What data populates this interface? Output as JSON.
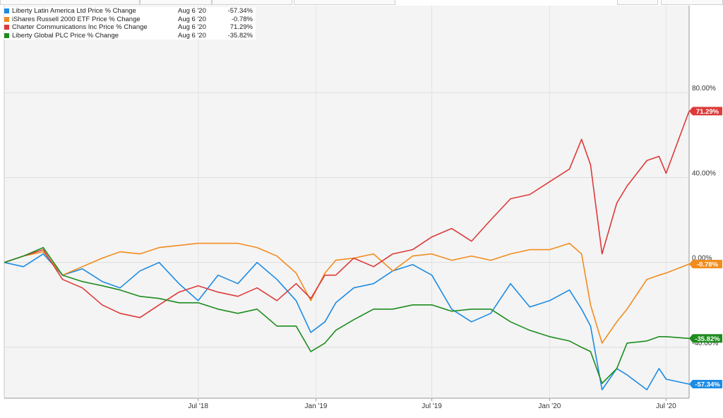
{
  "chart_data": {
    "type": "line",
    "ylabel_unit": "%",
    "y_ticks": [
      {
        "value": 80,
        "label": "80.00%"
      },
      {
        "value": 40,
        "label": "40.00%"
      },
      {
        "value": 0,
        "label": "0.00%"
      },
      {
        "value": -40,
        "label": "-40.00%"
      }
    ],
    "x_ticks": [
      "Jul '18",
      "Jan '19",
      "Jul '19",
      "Jan '20",
      "Jul '20"
    ],
    "x_tick_dates": [
      "2018-07-01",
      "2019-01-01",
      "2019-07-01",
      "2020-01-01",
      "2020-07-01"
    ],
    "x_range": [
      "2017-09-01",
      "2020-08-06"
    ],
    "ylim": [
      -64,
      121
    ],
    "grid": true,
    "legend_position": "top-left",
    "series": [
      {
        "name": "Liberty Latin America Ltd Price % Change",
        "legend_date": "Aug 6 '20",
        "legend_value": "-57.34%",
        "end_label": "-57.34%",
        "color": "#1c8be4",
        "x": [
          "2017-09-01",
          "2017-10-01",
          "2017-11-01",
          "2017-12-01",
          "2018-01-01",
          "2018-02-01",
          "2018-03-01",
          "2018-04-01",
          "2018-05-01",
          "2018-06-01",
          "2018-07-01",
          "2018-08-01",
          "2018-09-01",
          "2018-10-01",
          "2018-11-01",
          "2018-12-01",
          "2018-12-24",
          "2019-01-15",
          "2019-02-01",
          "2019-03-01",
          "2019-04-01",
          "2019-05-01",
          "2019-06-01",
          "2019-07-01",
          "2019-08-01",
          "2019-09-01",
          "2019-10-01",
          "2019-11-01",
          "2019-12-01",
          "2020-01-01",
          "2020-02-01",
          "2020-02-20",
          "2020-03-05",
          "2020-03-23",
          "2020-04-15",
          "2020-05-01",
          "2020-06-01",
          "2020-06-20",
          "2020-07-01",
          "2020-08-06"
        ],
        "y": [
          0,
          -2,
          4,
          -6,
          -3,
          -9,
          -12,
          -4,
          0,
          -10,
          -18,
          -6,
          -10,
          0,
          -8,
          -18,
          -33,
          -28,
          -19,
          -12,
          -10,
          -4,
          -1,
          -6,
          -22,
          -28,
          -24,
          -10,
          -21,
          -18,
          -13,
          -22,
          -30,
          -60,
          -50,
          -53,
          -60,
          -50,
          -55,
          -57.34
        ]
      },
      {
        "name": "iShares Russell 2000 ETF Price % Change",
        "legend_date": "Aug 6 '20",
        "legend_value": "-0.78%",
        "end_label": "-0.78%",
        "color": "#f28c1e",
        "x": [
          "2017-09-01",
          "2017-10-01",
          "2017-11-01",
          "2017-12-01",
          "2018-01-01",
          "2018-02-01",
          "2018-03-01",
          "2018-04-01",
          "2018-05-01",
          "2018-06-01",
          "2018-07-01",
          "2018-08-01",
          "2018-09-01",
          "2018-10-01",
          "2018-11-01",
          "2018-12-01",
          "2018-12-24",
          "2019-01-15",
          "2019-02-01",
          "2019-03-01",
          "2019-04-01",
          "2019-05-01",
          "2019-06-01",
          "2019-07-01",
          "2019-08-01",
          "2019-09-01",
          "2019-10-01",
          "2019-11-01",
          "2019-12-01",
          "2020-01-01",
          "2020-02-01",
          "2020-02-20",
          "2020-03-05",
          "2020-03-23",
          "2020-04-15",
          "2020-05-01",
          "2020-06-01",
          "2020-06-20",
          "2020-07-01",
          "2020-08-06"
        ],
        "y": [
          0,
          3,
          5,
          -6,
          -2,
          2,
          5,
          4,
          7,
          8,
          9,
          9,
          9,
          7,
          3,
          -5,
          -18,
          -5,
          1,
          2,
          4,
          -4,
          3,
          4,
          1,
          3,
          1,
          4,
          6,
          6,
          9,
          4,
          -20,
          -38,
          -28,
          -22,
          -8,
          -6,
          -5,
          -0.78
        ]
      },
      {
        "name": "Charter Communications Inc Price % Change",
        "legend_date": "Aug 6 '20",
        "legend_value": "71.29%",
        "end_label": "71.29%",
        "color": "#dd3a3a",
        "x": [
          "2017-09-01",
          "2017-10-01",
          "2017-11-01",
          "2017-12-01",
          "2018-01-01",
          "2018-02-01",
          "2018-03-01",
          "2018-04-01",
          "2018-05-01",
          "2018-06-01",
          "2018-07-01",
          "2018-08-01",
          "2018-09-01",
          "2018-10-01",
          "2018-11-01",
          "2018-12-01",
          "2018-12-24",
          "2019-01-15",
          "2019-02-01",
          "2019-03-01",
          "2019-04-01",
          "2019-05-01",
          "2019-06-01",
          "2019-07-01",
          "2019-08-01",
          "2019-09-01",
          "2019-10-01",
          "2019-11-01",
          "2019-12-01",
          "2020-01-01",
          "2020-02-01",
          "2020-02-20",
          "2020-03-05",
          "2020-03-23",
          "2020-04-15",
          "2020-05-01",
          "2020-06-01",
          "2020-06-20",
          "2020-07-01",
          "2020-08-06"
        ],
        "y": [
          0,
          3,
          6,
          -8,
          -12,
          -20,
          -24,
          -26,
          -20,
          -14,
          -11,
          -14,
          -16,
          -12,
          -18,
          -10,
          -17,
          -6,
          -6,
          2,
          -2,
          4,
          6,
          12,
          16,
          10,
          20,
          30,
          32,
          38,
          44,
          58,
          46,
          4,
          28,
          36,
          48,
          50,
          42,
          71.29
        ]
      },
      {
        "name": "Liberty Global PLC Price % Change",
        "legend_date": "Aug 6 '20",
        "legend_value": "-35.82%",
        "end_label": "-35.82%",
        "color": "#1e8c1e",
        "x": [
          "2017-09-01",
          "2017-10-01",
          "2017-11-01",
          "2017-12-01",
          "2018-01-01",
          "2018-02-01",
          "2018-03-01",
          "2018-04-01",
          "2018-05-01",
          "2018-06-01",
          "2018-07-01",
          "2018-08-01",
          "2018-09-01",
          "2018-10-01",
          "2018-11-01",
          "2018-12-01",
          "2018-12-24",
          "2019-01-15",
          "2019-02-01",
          "2019-03-01",
          "2019-04-01",
          "2019-05-01",
          "2019-06-01",
          "2019-07-01",
          "2019-08-01",
          "2019-09-01",
          "2019-10-01",
          "2019-11-01",
          "2019-12-01",
          "2020-01-01",
          "2020-02-01",
          "2020-02-20",
          "2020-03-05",
          "2020-03-23",
          "2020-04-15",
          "2020-05-01",
          "2020-06-01",
          "2020-06-20",
          "2020-07-01",
          "2020-08-06"
        ],
        "y": [
          0,
          3,
          7,
          -6,
          -9,
          -11,
          -13,
          -16,
          -17,
          -19,
          -19,
          -22,
          -24,
          -22,
          -30,
          -30,
          -42,
          -38,
          -32,
          -27,
          -22,
          -22,
          -20,
          -20,
          -23,
          -22,
          -22,
          -28,
          -32,
          -35,
          -37,
          -40,
          -42,
          -57,
          -50,
          -38,
          -37,
          -35,
          -35,
          -35.82
        ]
      }
    ]
  }
}
